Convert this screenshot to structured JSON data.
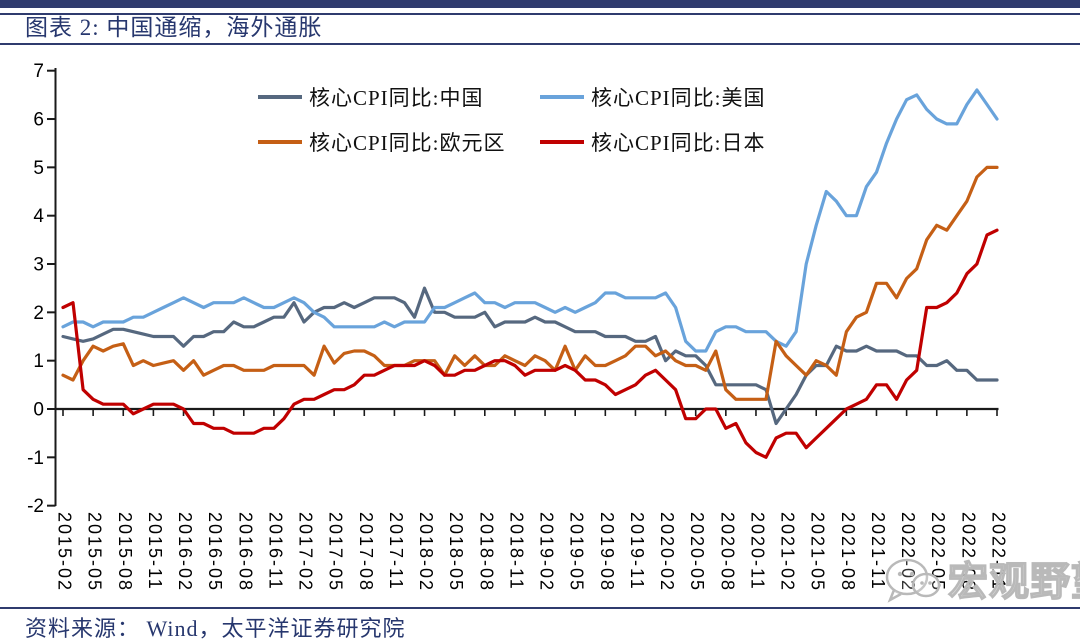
{
  "header": {
    "title": "图表 2:  中国通缩，海外通胀"
  },
  "footer": {
    "source": "资料来源：  Wind，太平洋证券研究院"
  },
  "watermark": {
    "icon": "wechat-icon",
    "text": "宏观野望"
  },
  "colors": {
    "accent_navy": "#2F3B6E",
    "text_navy": "#27376E",
    "axis_black": "#1A1A1A",
    "watermark_gray": "#B9B9B9",
    "series_china": "#56687F",
    "series_us": "#69A3DB",
    "series_eurozone": "#C55F15",
    "series_japan": "#C00000"
  },
  "chart_data": {
    "type": "line",
    "title": "图表 2: 中国通缩，海外通胀",
    "xlabel": "",
    "ylabel": "",
    "ylim": [
      -2,
      7
    ],
    "yticks": [
      7,
      6,
      5,
      4,
      3,
      2,
      1,
      0,
      -1,
      -2
    ],
    "grid": false,
    "legend_position": "top-inside",
    "x_start": "2015-02",
    "x_end": "2022-11",
    "x_freq": "monthly",
    "x_tick_labels": [
      "2015-02",
      "2015-05",
      "2015-08",
      "2015-11",
      "2016-02",
      "2016-05",
      "2016-08",
      "2016-11",
      "2017-02",
      "2017-05",
      "2017-08",
      "2017-11",
      "2018-02",
      "2018-05",
      "2018-08",
      "2018-11",
      "2019-02",
      "2019-05",
      "2019-08",
      "2019-11",
      "2020-02",
      "2020-05",
      "2020-08",
      "2020-11",
      "2021-02",
      "2021-05",
      "2021-08",
      "2021-11",
      "2022-02",
      "2022-05",
      "2022-08",
      "2022-11"
    ],
    "series": [
      {
        "id": "china",
        "name": "核心CPI同比:中国",
        "color": "#56687F",
        "values": [
          1.5,
          1.45,
          1.4,
          1.45,
          1.55,
          1.65,
          1.65,
          1.6,
          1.55,
          1.5,
          1.5,
          1.5,
          1.3,
          1.5,
          1.5,
          1.6,
          1.6,
          1.8,
          1.7,
          1.7,
          1.8,
          1.9,
          1.9,
          2.2,
          1.8,
          2.0,
          2.1,
          2.1,
          2.2,
          2.1,
          2.2,
          2.3,
          2.3,
          2.3,
          2.2,
          1.9,
          2.5,
          2.0,
          2.0,
          1.9,
          1.9,
          1.9,
          2.0,
          1.7,
          1.8,
          1.8,
          1.8,
          1.9,
          1.8,
          1.8,
          1.7,
          1.6,
          1.6,
          1.6,
          1.5,
          1.5,
          1.5,
          1.4,
          1.4,
          1.5,
          1.0,
          1.2,
          1.1,
          1.1,
          0.9,
          0.5,
          0.5,
          0.5,
          0.5,
          0.5,
          0.4,
          -0.3,
          0.0,
          0.3,
          0.7,
          0.9,
          0.9,
          1.3,
          1.2,
          1.2,
          1.3,
          1.2,
          1.2,
          1.2,
          1.1,
          1.1,
          0.9,
          0.9,
          1.0,
          0.8,
          0.8,
          0.6,
          0.6,
          0.6
        ]
      },
      {
        "id": "us",
        "name": "核心CPI同比:美国",
        "color": "#69A3DB",
        "values": [
          1.7,
          1.8,
          1.8,
          1.7,
          1.8,
          1.8,
          1.8,
          1.9,
          1.9,
          2.0,
          2.1,
          2.2,
          2.3,
          2.2,
          2.1,
          2.2,
          2.2,
          2.2,
          2.3,
          2.2,
          2.1,
          2.1,
          2.2,
          2.3,
          2.2,
          2.0,
          1.9,
          1.7,
          1.7,
          1.7,
          1.7,
          1.7,
          1.8,
          1.7,
          1.8,
          1.8,
          1.8,
          2.1,
          2.1,
          2.2,
          2.3,
          2.4,
          2.2,
          2.2,
          2.1,
          2.2,
          2.2,
          2.2,
          2.1,
          2.0,
          2.1,
          2.0,
          2.1,
          2.2,
          2.4,
          2.4,
          2.3,
          2.3,
          2.3,
          2.3,
          2.4,
          2.1,
          1.4,
          1.2,
          1.2,
          1.6,
          1.7,
          1.7,
          1.6,
          1.6,
          1.6,
          1.4,
          1.3,
          1.6,
          3.0,
          3.8,
          4.5,
          4.3,
          4.0,
          4.0,
          4.6,
          4.9,
          5.5,
          6.0,
          6.4,
          6.5,
          6.2,
          6.0,
          5.9,
          5.9,
          6.3,
          6.6,
          6.3,
          6.0
        ]
      },
      {
        "id": "eurozone",
        "name": "核心CPI同比:欧元区",
        "color": "#C55F15",
        "values": [
          0.7,
          0.6,
          1.0,
          1.3,
          1.2,
          1.3,
          1.35,
          0.9,
          1.0,
          0.9,
          0.95,
          1.0,
          0.8,
          1.0,
          0.7,
          0.8,
          0.9,
          0.9,
          0.8,
          0.8,
          0.8,
          0.9,
          0.9,
          0.9,
          0.9,
          0.7,
          1.3,
          0.95,
          1.15,
          1.2,
          1.2,
          1.1,
          0.9,
          0.9,
          0.9,
          1.0,
          1.0,
          1.0,
          0.7,
          1.1,
          0.9,
          1.1,
          0.9,
          0.9,
          1.1,
          1.0,
          0.9,
          1.1,
          1.0,
          0.8,
          1.3,
          0.8,
          1.1,
          0.9,
          0.9,
          1.0,
          1.1,
          1.3,
          1.3,
          1.1,
          1.2,
          1.0,
          0.9,
          0.9,
          0.8,
          1.2,
          0.4,
          0.2,
          0.2,
          0.2,
          0.2,
          1.4,
          1.1,
          0.9,
          0.7,
          1.0,
          0.9,
          0.7,
          1.6,
          1.9,
          2.0,
          2.6,
          2.6,
          2.3,
          2.7,
          2.9,
          3.5,
          3.8,
          3.7,
          4.0,
          4.3,
          4.8,
          5.0,
          5.0
        ]
      },
      {
        "id": "japan",
        "name": "核心CPI同比:日本",
        "color": "#C00000",
        "values": [
          2.1,
          2.2,
          0.4,
          0.2,
          0.1,
          0.1,
          0.1,
          -0.1,
          0.0,
          0.1,
          0.1,
          0.1,
          0.0,
          -0.3,
          -0.3,
          -0.4,
          -0.4,
          -0.5,
          -0.5,
          -0.5,
          -0.4,
          -0.4,
          -0.2,
          0.1,
          0.2,
          0.2,
          0.3,
          0.4,
          0.4,
          0.5,
          0.7,
          0.7,
          0.8,
          0.9,
          0.9,
          0.9,
          1.0,
          0.9,
          0.7,
          0.7,
          0.8,
          0.8,
          0.9,
          1.0,
          1.0,
          0.9,
          0.7,
          0.8,
          0.8,
          0.8,
          0.9,
          0.8,
          0.6,
          0.6,
          0.5,
          0.3,
          0.4,
          0.5,
          0.7,
          0.8,
          0.6,
          0.4,
          -0.2,
          -0.2,
          0.0,
          0.0,
          -0.4,
          -0.3,
          -0.7,
          -0.9,
          -1.0,
          -0.6,
          -0.5,
          -0.5,
          -0.8,
          -0.6,
          -0.4,
          -0.2,
          0.0,
          0.1,
          0.2,
          0.5,
          0.5,
          0.2,
          0.6,
          0.8,
          2.1,
          2.1,
          2.2,
          2.4,
          2.8,
          3.0,
          3.6,
          3.7
        ]
      }
    ]
  }
}
